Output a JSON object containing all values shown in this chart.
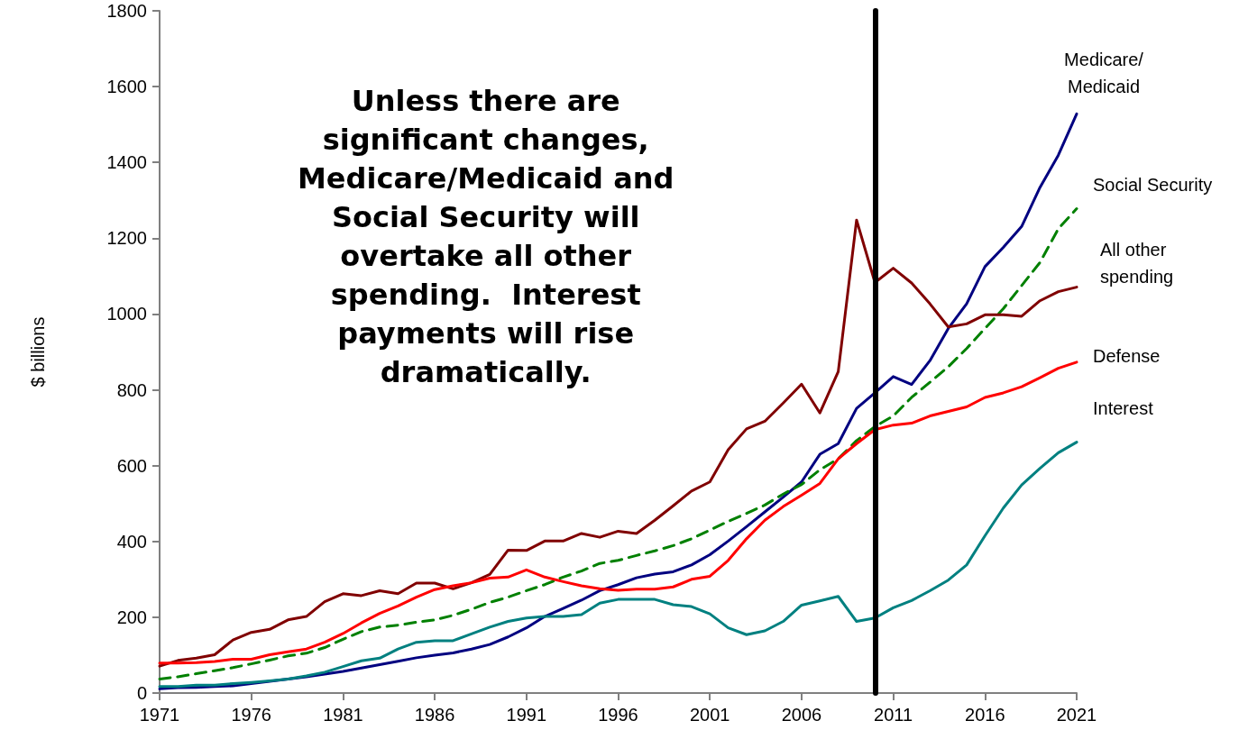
{
  "chart_data": {
    "type": "line",
    "ylabel": "$ billions",
    "x": [
      1971,
      1972,
      1973,
      1974,
      1975,
      1976,
      1977,
      1978,
      1979,
      1980,
      1981,
      1982,
      1983,
      1984,
      1985,
      1986,
      1987,
      1988,
      1989,
      1990,
      1991,
      1992,
      1993,
      1994,
      1995,
      1996,
      1997,
      1998,
      1999,
      2000,
      2001,
      2002,
      2003,
      2004,
      2005,
      2006,
      2007,
      2008,
      2009,
      2010,
      2011,
      2012,
      2013,
      2014,
      2015,
      2016,
      2017,
      2018,
      2019,
      2020,
      2021
    ],
    "xlim": [
      1971,
      2021
    ],
    "xticks": [
      1971,
      1976,
      1981,
      1986,
      1991,
      1996,
      2001,
      2006,
      2011,
      2016,
      2021
    ],
    "ylim": [
      0,
      1800
    ],
    "yticks": [
      0,
      200,
      400,
      600,
      800,
      1000,
      1200,
      1400,
      1600,
      1800
    ],
    "grid": false,
    "legend": false,
    "marker": "none",
    "line_style": "solid",
    "series": [
      {
        "name": "Medicare/\nMedicaid",
        "color": "#000080",
        "values": [
          11,
          14,
          15,
          17,
          19,
          25,
          31,
          37,
          43,
          50,
          57,
          66,
          75,
          84,
          93,
          100,
          106,
          116,
          128,
          148,
          172,
          202,
          223,
          245,
          270,
          286,
          304,
          314,
          320,
          338,
          365,
          401,
          439,
          478,
          517,
          557,
          630,
          658,
          751,
          792,
          835,
          814,
          877,
          962,
          1027,
          1125,
          1176,
          1231,
          1334,
          1419,
          1528
        ]
      },
      {
        "name": "Social Security",
        "color": "#008000",
        "line_style": "dashed",
        "values": [
          37,
          43,
          51,
          59,
          67,
          77,
          87,
          98,
          105,
          120,
          142,
          162,
          174,
          179,
          187,
          193,
          205,
          221,
          239,
          253,
          270,
          286,
          306,
          322,
          342,
          350,
          363,
          375,
          389,
          407,
          430,
          453,
          474,
          496,
          525,
          550,
          589,
          618,
          666,
          703,
          731,
          780,
          820,
          861,
          909,
          962,
          1014,
          1075,
          1136,
          1225,
          1278
        ]
      },
      {
        "name": "All other\nspending",
        "color": "#800000",
        "values": [
          71,
          86,
          92,
          101,
          140,
          160,
          168,
          193,
          202,
          241,
          262,
          257,
          270,
          262,
          290,
          290,
          275,
          291,
          313,
          377,
          376,
          401,
          401,
          421,
          411,
          427,
          421,
          456,
          494,
          533,
          557,
          642,
          697,
          717,
          765,
          815,
          739,
          848,
          1248,
          1083,
          1121,
          1082,
          1027,
          966,
          974,
          998,
          998,
          994,
          1035,
          1059,
          1071
        ]
      },
      {
        "name": "Defense",
        "color": "#ff0000",
        "values": [
          79,
          79,
          80,
          83,
          89,
          89,
          101,
          109,
          116,
          134,
          157,
          185,
          210,
          230,
          253,
          273,
          283,
          291,
          303,
          306,
          325,
          306,
          294,
          283,
          275,
          271,
          274,
          274,
          280,
          300,
          308,
          350,
          407,
          456,
          492,
          522,
          553,
          618,
          658,
          695,
          707,
          712,
          731,
          743,
          755,
          780,
          792,
          808,
          832,
          857,
          873
        ]
      },
      {
        "name": "Interest",
        "color": "#008080",
        "values": [
          17,
          17,
          21,
          21,
          25,
          28,
          32,
          37,
          45,
          55,
          70,
          85,
          92,
          116,
          134,
          138,
          138,
          156,
          174,
          189,
          198,
          202,
          202,
          207,
          237,
          247,
          247,
          247,
          233,
          228,
          209,
          172,
          154,
          164,
          189,
          232,
          243,
          255,
          189,
          198,
          225,
          244,
          270,
          298,
          338,
          415,
          488,
          549,
          593,
          634,
          662
        ]
      }
    ],
    "ref_lines": [
      {
        "axis": "x",
        "value": 2010,
        "color": "#000000"
      }
    ],
    "annotations": [
      "Unless there are\nsignificant changes,\nMedicare/Medicaid and\nSocial Security will\novertake all other\nspending.  Interest\npayments will rise\ndramatically."
    ]
  }
}
